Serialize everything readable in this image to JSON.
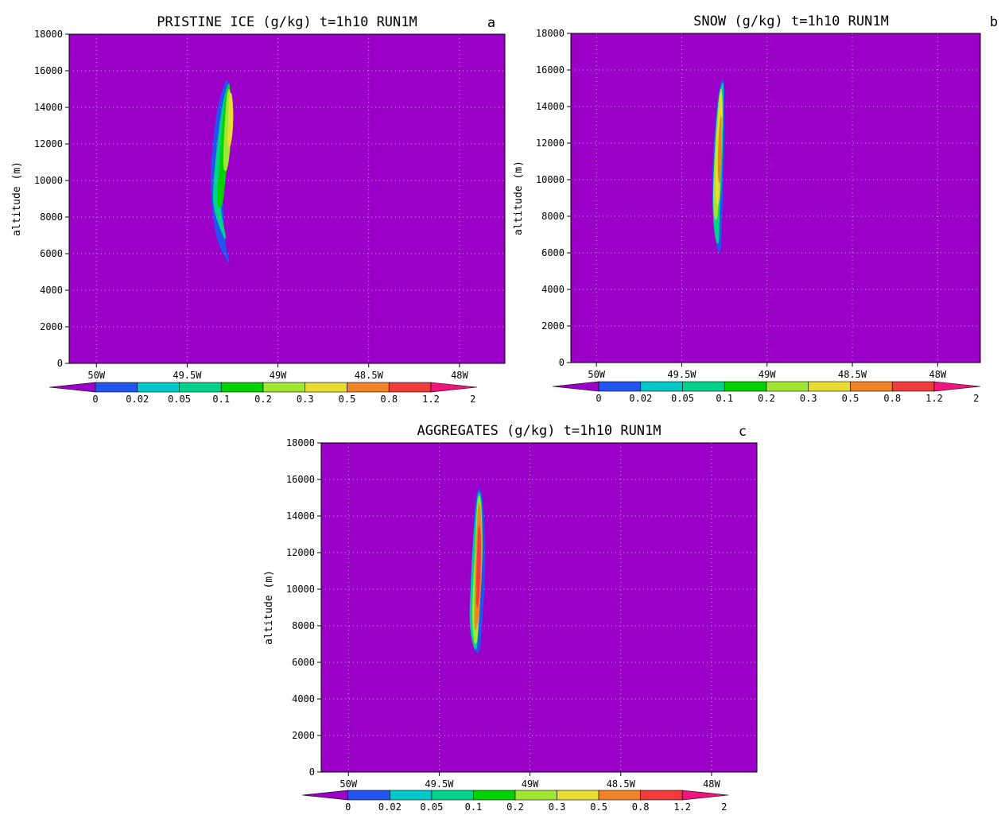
{
  "figure": {
    "panels": [
      {
        "title": "PRISTINE ICE (g/kg) t=1h10 RUN1M",
        "letter": "a",
        "ylabel": "altitude (m)"
      },
      {
        "title": "SNOW (g/kg) t=1h10 RUN1M",
        "letter": "b",
        "ylabel": "altitude (m)"
      },
      {
        "title": "AGGREGATES (g/kg) t=1h10 RUN1M",
        "letter": "c",
        "ylabel": "altitude (m)"
      }
    ]
  },
  "chart_data": [
    {
      "type": "heatmap",
      "title": "PRISTINE ICE (g/kg) t=1h10 RUN1M",
      "panel_label": "a",
      "ylabel": "altitude (m)",
      "xlabel": "",
      "xlim": [
        -50.15,
        -47.75
      ],
      "ylim": [
        0,
        18000
      ],
      "x_ticks": [
        -50,
        -49.5,
        -49,
        -48.5,
        -48
      ],
      "x_tick_labels": [
        "50W",
        "49.5W",
        "49W",
        "48.5W",
        "48W"
      ],
      "y_ticks": [
        0,
        2000,
        4000,
        6000,
        8000,
        10000,
        12000,
        14000,
        16000,
        18000
      ],
      "grid": true,
      "levels": [
        0,
        0.02,
        0.05,
        0.1,
        0.2,
        0.3,
        0.5,
        0.8,
        1.2,
        2
      ],
      "level_colors": [
        "#9a00c8",
        "#2255f0",
        "#00c8c8",
        "#00d28c",
        "#00d200",
        "#a0e632",
        "#e6dc32",
        "#f08228",
        "#f03c3c",
        "#f0147d"
      ],
      "background_color": "#9a00c8",
      "max_value_approx": 0.5,
      "plume": {
        "center_lon": -49.27,
        "altitude_range": [
          5500,
          15500
        ],
        "max_level": 0.5,
        "contours": [
          {
            "level": 0.02,
            "profile": [
              [
                5500,
                -49.27,
                0.01
              ],
              [
                6500,
                -49.31,
                0.04
              ],
              [
                8000,
                -49.33,
                0.06
              ],
              [
                10000,
                -49.34,
                0.07
              ],
              [
                12000,
                -49.33,
                0.06
              ],
              [
                14000,
                -49.31,
                0.05
              ],
              [
                15500,
                -49.28,
                0.02
              ]
            ]
          },
          {
            "level": 0.1,
            "profile": [
              [
                6800,
                -49.29,
                0.015
              ],
              [
                8500,
                -49.34,
                0.04
              ],
              [
                10000,
                -49.33,
                0.05
              ],
              [
                12000,
                -49.31,
                0.05
              ],
              [
                14000,
                -49.29,
                0.04
              ],
              [
                15300,
                -49.27,
                0.015
              ]
            ]
          },
          {
            "level": 0.2,
            "profile": [
              [
                8500,
                -49.32,
                0.03
              ],
              [
                10000,
                -49.31,
                0.04
              ],
              [
                12000,
                -49.29,
                0.05
              ],
              [
                14000,
                -49.28,
                0.04
              ],
              [
                15200,
                -49.27,
                0.015
              ]
            ]
          },
          {
            "level": 0.3,
            "profile": [
              [
                10500,
                -49.29,
                0.025
              ],
              [
                12000,
                -49.28,
                0.04
              ],
              [
                14000,
                -49.27,
                0.035
              ],
              [
                15000,
                -49.27,
                0.015
              ]
            ]
          },
          {
            "level": 0.5,
            "profile": [
              [
                11800,
                -49.27,
                0.02
              ],
              [
                13000,
                -49.26,
                0.03
              ],
              [
                14200,
                -49.26,
                0.025
              ],
              [
                14800,
                -49.26,
                0.01
              ]
            ]
          }
        ]
      }
    },
    {
      "type": "heatmap",
      "title": "SNOW (g/kg) t=1h10 RUN1M",
      "panel_label": "b",
      "ylabel": "altitude (m)",
      "xlabel": "",
      "xlim": [
        -50.15,
        -47.75
      ],
      "ylim": [
        0,
        18000
      ],
      "x_ticks": [
        -50,
        -49.5,
        -49,
        -48.5,
        -48
      ],
      "x_tick_labels": [
        "50W",
        "49.5W",
        "49W",
        "48.5W",
        "48W"
      ],
      "y_ticks": [
        0,
        2000,
        4000,
        6000,
        8000,
        10000,
        12000,
        14000,
        16000,
        18000
      ],
      "grid": true,
      "levels": [
        0,
        0.02,
        0.05,
        0.1,
        0.2,
        0.3,
        0.5,
        0.8,
        1.2,
        2
      ],
      "level_colors": [
        "#9a00c8",
        "#2255f0",
        "#00c8c8",
        "#00d28c",
        "#00d200",
        "#a0e632",
        "#e6dc32",
        "#f08228",
        "#f03c3c",
        "#f0147d"
      ],
      "background_color": "#9a00c8",
      "max_value_approx": 0.8,
      "plume": {
        "center_lon": -49.28,
        "altitude_range": [
          6000,
          15500
        ],
        "max_level": 0.8,
        "contours": [
          {
            "level": 0.02,
            "profile": [
              [
                6000,
                -49.28,
                0.02
              ],
              [
                7500,
                -49.29,
                0.05
              ],
              [
                10000,
                -49.29,
                0.07
              ],
              [
                12500,
                -49.28,
                0.06
              ],
              [
                14500,
                -49.27,
                0.04
              ],
              [
                15500,
                -49.26,
                0.015
              ]
            ]
          },
          {
            "level": 0.1,
            "profile": [
              [
                6500,
                -49.29,
                0.02
              ],
              [
                8000,
                -49.3,
                0.04
              ],
              [
                10000,
                -49.29,
                0.05
              ],
              [
                12500,
                -49.28,
                0.045
              ],
              [
                14500,
                -49.27,
                0.03
              ],
              [
                15300,
                -49.26,
                0.01
              ]
            ]
          },
          {
            "level": 0.3,
            "profile": [
              [
                7800,
                -49.3,
                0.02
              ],
              [
                9000,
                -49.3,
                0.035
              ],
              [
                11000,
                -49.29,
                0.04
              ],
              [
                13000,
                -49.28,
                0.035
              ],
              [
                15000,
                -49.27,
                0.015
              ]
            ]
          },
          {
            "level": 0.5,
            "profile": [
              [
                8600,
                -49.29,
                0.02
              ],
              [
                10000,
                -49.29,
                0.03
              ],
              [
                12000,
                -49.28,
                0.03
              ],
              [
                14000,
                -49.27,
                0.022
              ],
              [
                14800,
                -49.27,
                0.008
              ]
            ]
          },
          {
            "level": 0.8,
            "profile": [
              [
                9800,
                -49.28,
                0.012
              ],
              [
                11000,
                -49.28,
                0.02
              ],
              [
                12500,
                -49.275,
                0.018
              ],
              [
                13500,
                -49.27,
                0.008
              ]
            ]
          }
        ]
      }
    },
    {
      "type": "heatmap",
      "title": "AGGREGATES (g/kg) t=1h10 RUN1M",
      "panel_label": "c",
      "ylabel": "altitude (m)",
      "xlabel": "",
      "xlim": [
        -50.15,
        -47.75
      ],
      "ylim": [
        0,
        18000
      ],
      "x_ticks": [
        -50,
        -49.5,
        -49,
        -48.5,
        -48
      ],
      "x_tick_labels": [
        "50W",
        "49.5W",
        "49W",
        "48.5W",
        "48W"
      ],
      "y_ticks": [
        0,
        2000,
        4000,
        6000,
        8000,
        10000,
        12000,
        14000,
        16000,
        18000
      ],
      "grid": true,
      "levels": [
        0,
        0.02,
        0.05,
        0.1,
        0.2,
        0.3,
        0.5,
        0.8,
        1.2,
        2
      ],
      "level_colors": [
        "#9a00c8",
        "#2255f0",
        "#00c8c8",
        "#00d28c",
        "#00d200",
        "#a0e632",
        "#e6dc32",
        "#f08228",
        "#f03c3c",
        "#f0147d"
      ],
      "background_color": "#9a00c8",
      "max_value_approx": 1.2,
      "plume": {
        "center_lon": -49.28,
        "altitude_range": [
          6500,
          15500
        ],
        "max_level": 1.2,
        "contours": [
          {
            "level": 0.02,
            "profile": [
              [
                6500,
                -49.29,
                0.03
              ],
              [
                8000,
                -49.3,
                0.07
              ],
              [
                10000,
                -49.29,
                0.08
              ],
              [
                12500,
                -49.28,
                0.07
              ],
              [
                14500,
                -49.28,
                0.05
              ],
              [
                15500,
                -49.28,
                0.02
              ]
            ]
          },
          {
            "level": 0.1,
            "profile": [
              [
                6700,
                -49.3,
                0.02
              ],
              [
                8000,
                -49.31,
                0.05
              ],
              [
                10000,
                -49.3,
                0.055
              ],
              [
                12500,
                -49.29,
                0.05
              ],
              [
                14500,
                -49.28,
                0.035
              ],
              [
                15300,
                -49.28,
                0.012
              ]
            ]
          },
          {
            "level": 0.3,
            "profile": [
              [
                7000,
                -49.3,
                0.02
              ],
              [
                8500,
                -49.3,
                0.04
              ],
              [
                10500,
                -49.29,
                0.045
              ],
              [
                12500,
                -49.28,
                0.04
              ],
              [
                14500,
                -49.28,
                0.025
              ],
              [
                15100,
                -49.28,
                0.01
              ]
            ]
          },
          {
            "level": 0.8,
            "profile": [
              [
                7800,
                -49.3,
                0.015
              ],
              [
                9000,
                -49.29,
                0.03
              ],
              [
                11000,
                -49.285,
                0.035
              ],
              [
                13000,
                -49.28,
                0.03
              ],
              [
                14700,
                -49.28,
                0.012
              ]
            ]
          },
          {
            "level": 1.2,
            "profile": [
              [
                9000,
                -49.29,
                0.012
              ],
              [
                10500,
                -49.285,
                0.022
              ],
              [
                12000,
                -49.28,
                0.022
              ],
              [
                13500,
                -49.28,
                0.012
              ]
            ]
          }
        ]
      }
    }
  ]
}
